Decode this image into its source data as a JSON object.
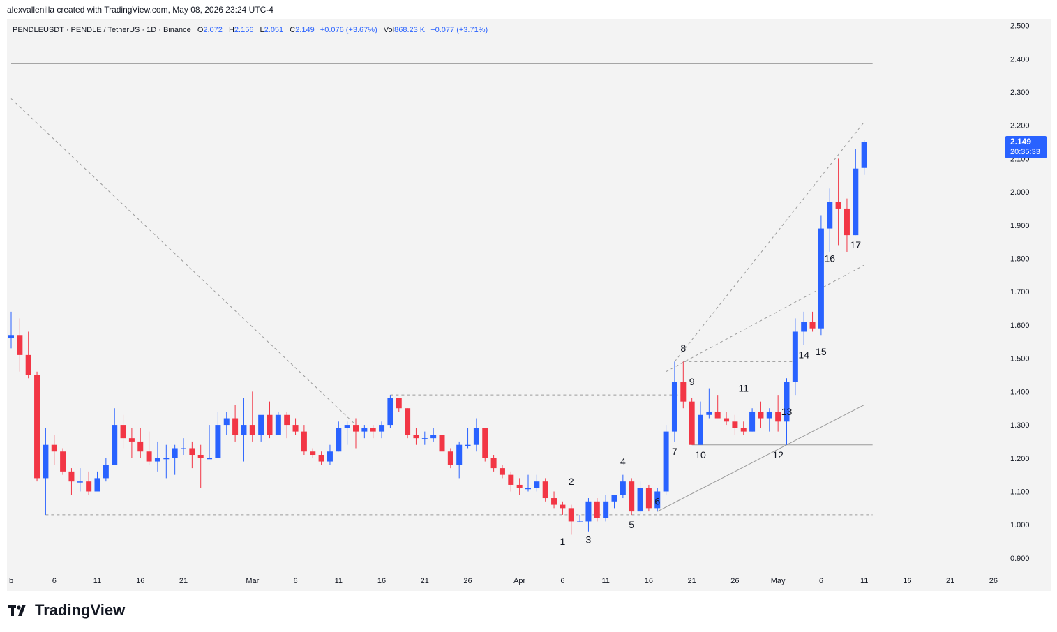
{
  "header": {
    "attribution": "alexvallenilla created with TradingView.com, May 08, 2026 23:24 UTC-4"
  },
  "legend": {
    "symbol": "PENDLEUSDT · PENDLE / TetherUS · 1D · Binance",
    "o_label": "O",
    "o_value": "2.072",
    "h_label": "H",
    "h_value": "2.156",
    "l_label": "L",
    "l_value": "2.051",
    "c_label": "C",
    "c_value": "2.149",
    "change": "+0.076 (+3.67%)",
    "vol_label": "Vol",
    "vol_value": "868.23 K",
    "vol_change": "+0.077 (+3.71%)"
  },
  "price_tag": {
    "price": "2.149",
    "countdown": "20:35:33",
    "value": 2.149
  },
  "brand": {
    "name": "TradingView",
    "logo_icon": "tradingview-logo-icon"
  },
  "colors": {
    "up": "#2962ff",
    "down": "#f23645",
    "plot_bg": "#f3f3f3",
    "guide": "#9a9a9a",
    "tag_bg": "#2962ff"
  },
  "chart_data": {
    "type": "candlestick",
    "y_axis": {
      "range": [
        0.86,
        2.52
      ],
      "ticks": [
        0.9,
        1.0,
        1.1,
        1.2,
        1.3,
        1.4,
        1.5,
        1.6,
        1.7,
        1.8,
        1.9,
        2.0,
        2.1,
        2.2,
        2.3,
        2.4,
        2.5
      ],
      "tick_labels": [
        "0.900",
        "1.000",
        "1.100",
        "1.200",
        "1.300",
        "1.400",
        "1.500",
        "1.600",
        "1.700",
        "1.800",
        "1.900",
        "2.000",
        "2.100",
        "2.200",
        "2.300",
        "2.400",
        "2.500"
      ]
    },
    "x_axis": {
      "range": [
        "2026-02-01",
        "2026-05-28"
      ],
      "ticks": [
        {
          "date": "2026-02-01",
          "label": "b"
        },
        {
          "date": "2026-02-06",
          "label": "6"
        },
        {
          "date": "2026-02-11",
          "label": "11"
        },
        {
          "date": "2026-02-16",
          "label": "16"
        },
        {
          "date": "2026-02-21",
          "label": "21"
        },
        {
          "date": "2026-03-01",
          "label": "Mar"
        },
        {
          "date": "2026-03-06",
          "label": "6"
        },
        {
          "date": "2026-03-11",
          "label": "11"
        },
        {
          "date": "2026-03-16",
          "label": "16"
        },
        {
          "date": "2026-03-21",
          "label": "21"
        },
        {
          "date": "2026-03-26",
          "label": "26"
        },
        {
          "date": "2026-04-01",
          "label": "Apr"
        },
        {
          "date": "2026-04-06",
          "label": "6"
        },
        {
          "date": "2026-04-11",
          "label": "11"
        },
        {
          "date": "2026-04-16",
          "label": "16"
        },
        {
          "date": "2026-04-21",
          "label": "21"
        },
        {
          "date": "2026-04-26",
          "label": "26"
        },
        {
          "date": "2026-05-01",
          "label": "May"
        },
        {
          "date": "2026-05-06",
          "label": "6"
        },
        {
          "date": "2026-05-11",
          "label": "11"
        },
        {
          "date": "2026-05-16",
          "label": "16"
        },
        {
          "date": "2026-05-21",
          "label": "21"
        },
        {
          "date": "2026-05-26",
          "label": "26"
        }
      ]
    },
    "candles": [
      {
        "date": "2026-02-01",
        "o": 1.56,
        "h": 1.64,
        "l": 1.53,
        "c": 1.57
      },
      {
        "date": "2026-02-02",
        "o": 1.57,
        "h": 1.62,
        "l": 1.46,
        "c": 1.51
      },
      {
        "date": "2026-02-03",
        "o": 1.51,
        "h": 1.58,
        "l": 1.44,
        "c": 1.45
      },
      {
        "date": "2026-02-04",
        "o": 1.45,
        "h": 1.46,
        "l": 1.13,
        "c": 1.14
      },
      {
        "date": "2026-02-05",
        "o": 1.14,
        "h": 1.29,
        "l": 1.03,
        "c": 1.24
      },
      {
        "date": "2026-02-06",
        "o": 1.24,
        "h": 1.27,
        "l": 1.18,
        "c": 1.22
      },
      {
        "date": "2026-02-07",
        "o": 1.22,
        "h": 1.23,
        "l": 1.15,
        "c": 1.16
      },
      {
        "date": "2026-02-08",
        "o": 1.16,
        "h": 1.17,
        "l": 1.09,
        "c": 1.13
      },
      {
        "date": "2026-02-09",
        "o": 1.13,
        "h": 1.17,
        "l": 1.1,
        "c": 1.13
      },
      {
        "date": "2026-02-10",
        "o": 1.13,
        "h": 1.16,
        "l": 1.09,
        "c": 1.1
      },
      {
        "date": "2026-02-11",
        "o": 1.1,
        "h": 1.16,
        "l": 1.1,
        "c": 1.14
      },
      {
        "date": "2026-02-12",
        "o": 1.14,
        "h": 1.2,
        "l": 1.13,
        "c": 1.18
      },
      {
        "date": "2026-02-13",
        "o": 1.18,
        "h": 1.35,
        "l": 1.18,
        "c": 1.3
      },
      {
        "date": "2026-02-14",
        "o": 1.3,
        "h": 1.33,
        "l": 1.23,
        "c": 1.26
      },
      {
        "date": "2026-02-15",
        "o": 1.26,
        "h": 1.29,
        "l": 1.2,
        "c": 1.25
      },
      {
        "date": "2026-02-16",
        "o": 1.25,
        "h": 1.29,
        "l": 1.2,
        "c": 1.22
      },
      {
        "date": "2026-02-17",
        "o": 1.22,
        "h": 1.28,
        "l": 1.18,
        "c": 1.19
      },
      {
        "date": "2026-02-18",
        "o": 1.19,
        "h": 1.25,
        "l": 1.16,
        "c": 1.2
      },
      {
        "date": "2026-02-19",
        "o": 1.2,
        "h": 1.24,
        "l": 1.14,
        "c": 1.2
      },
      {
        "date": "2026-02-20",
        "o": 1.2,
        "h": 1.24,
        "l": 1.15,
        "c": 1.23
      },
      {
        "date": "2026-02-21",
        "o": 1.23,
        "h": 1.26,
        "l": 1.21,
        "c": 1.23
      },
      {
        "date": "2026-02-22",
        "o": 1.23,
        "h": 1.25,
        "l": 1.17,
        "c": 1.21
      },
      {
        "date": "2026-02-23",
        "o": 1.21,
        "h": 1.24,
        "l": 1.11,
        "c": 1.2
      },
      {
        "date": "2026-02-24",
        "o": 1.2,
        "h": 1.3,
        "l": 1.2,
        "c": 1.2
      },
      {
        "date": "2026-02-25",
        "o": 1.2,
        "h": 1.34,
        "l": 1.2,
        "c": 1.3
      },
      {
        "date": "2026-02-26",
        "o": 1.3,
        "h": 1.34,
        "l": 1.27,
        "c": 1.32
      },
      {
        "date": "2026-02-27",
        "o": 1.32,
        "h": 1.36,
        "l": 1.25,
        "c": 1.27
      },
      {
        "date": "2026-02-28",
        "o": 1.27,
        "h": 1.38,
        "l": 1.19,
        "c": 1.3
      },
      {
        "date": "2026-03-01",
        "o": 1.3,
        "h": 1.4,
        "l": 1.25,
        "c": 1.27
      },
      {
        "date": "2026-03-02",
        "o": 1.27,
        "h": 1.32,
        "l": 1.25,
        "c": 1.33
      },
      {
        "date": "2026-03-03",
        "o": 1.33,
        "h": 1.37,
        "l": 1.26,
        "c": 1.27
      },
      {
        "date": "2026-03-04",
        "o": 1.27,
        "h": 1.34,
        "l": 1.27,
        "c": 1.33
      },
      {
        "date": "2026-03-05",
        "o": 1.33,
        "h": 1.34,
        "l": 1.26,
        "c": 1.3
      },
      {
        "date": "2026-03-06",
        "o": 1.3,
        "h": 1.32,
        "l": 1.27,
        "c": 1.28
      },
      {
        "date": "2026-03-07",
        "o": 1.28,
        "h": 1.3,
        "l": 1.21,
        "c": 1.22
      },
      {
        "date": "2026-03-08",
        "o": 1.22,
        "h": 1.23,
        "l": 1.2,
        "c": 1.21
      },
      {
        "date": "2026-03-09",
        "o": 1.21,
        "h": 1.22,
        "l": 1.18,
        "c": 1.19
      },
      {
        "date": "2026-03-10",
        "o": 1.19,
        "h": 1.24,
        "l": 1.18,
        "c": 1.22
      },
      {
        "date": "2026-03-11",
        "o": 1.22,
        "h": 1.31,
        "l": 1.22,
        "c": 1.29
      },
      {
        "date": "2026-03-12",
        "o": 1.29,
        "h": 1.31,
        "l": 1.24,
        "c": 1.3
      },
      {
        "date": "2026-03-13",
        "o": 1.3,
        "h": 1.32,
        "l": 1.23,
        "c": 1.28
      },
      {
        "date": "2026-03-14",
        "o": 1.28,
        "h": 1.3,
        "l": 1.26,
        "c": 1.29
      },
      {
        "date": "2026-03-15",
        "o": 1.29,
        "h": 1.3,
        "l": 1.26,
        "c": 1.28
      },
      {
        "date": "2026-03-16",
        "o": 1.28,
        "h": 1.31,
        "l": 1.26,
        "c": 1.3
      },
      {
        "date": "2026-03-17",
        "o": 1.3,
        "h": 1.39,
        "l": 1.29,
        "c": 1.38
      },
      {
        "date": "2026-03-18",
        "o": 1.38,
        "h": 1.38,
        "l": 1.34,
        "c": 1.35
      },
      {
        "date": "2026-03-19",
        "o": 1.35,
        "h": 1.35,
        "l": 1.26,
        "c": 1.27
      },
      {
        "date": "2026-03-20",
        "o": 1.27,
        "h": 1.29,
        "l": 1.24,
        "c": 1.26
      },
      {
        "date": "2026-03-21",
        "o": 1.26,
        "h": 1.28,
        "l": 1.24,
        "c": 1.26
      },
      {
        "date": "2026-03-22",
        "o": 1.26,
        "h": 1.29,
        "l": 1.25,
        "c": 1.27
      },
      {
        "date": "2026-03-23",
        "o": 1.27,
        "h": 1.28,
        "l": 1.21,
        "c": 1.22
      },
      {
        "date": "2026-03-24",
        "o": 1.22,
        "h": 1.23,
        "l": 1.17,
        "c": 1.18
      },
      {
        "date": "2026-03-25",
        "o": 1.18,
        "h": 1.25,
        "l": 1.14,
        "c": 1.24
      },
      {
        "date": "2026-03-26",
        "o": 1.24,
        "h": 1.29,
        "l": 1.23,
        "c": 1.24
      },
      {
        "date": "2026-03-27",
        "o": 1.24,
        "h": 1.32,
        "l": 1.22,
        "c": 1.29
      },
      {
        "date": "2026-03-28",
        "o": 1.29,
        "h": 1.29,
        "l": 1.19,
        "c": 1.2
      },
      {
        "date": "2026-03-29",
        "o": 1.2,
        "h": 1.21,
        "l": 1.16,
        "c": 1.17
      },
      {
        "date": "2026-03-30",
        "o": 1.17,
        "h": 1.18,
        "l": 1.14,
        "c": 1.15
      },
      {
        "date": "2026-03-31",
        "o": 1.15,
        "h": 1.16,
        "l": 1.1,
        "c": 1.12
      },
      {
        "date": "2026-04-01",
        "o": 1.12,
        "h": 1.14,
        "l": 1.09,
        "c": 1.11
      },
      {
        "date": "2026-04-02",
        "o": 1.11,
        "h": 1.15,
        "l": 1.1,
        "c": 1.11
      },
      {
        "date": "2026-04-03",
        "o": 1.11,
        "h": 1.15,
        "l": 1.1,
        "c": 1.13
      },
      {
        "date": "2026-04-04",
        "o": 1.13,
        "h": 1.14,
        "l": 1.07,
        "c": 1.08
      },
      {
        "date": "2026-04-05",
        "o": 1.08,
        "h": 1.1,
        "l": 1.05,
        "c": 1.06
      },
      {
        "date": "2026-04-06",
        "o": 1.06,
        "h": 1.07,
        "l": 1.03,
        "c": 1.05
      },
      {
        "date": "2026-04-07",
        "o": 1.05,
        "h": 1.06,
        "l": 0.97,
        "c": 1.01
      },
      {
        "date": "2026-04-08",
        "o": 1.01,
        "h": 1.03,
        "l": 1.01,
        "c": 1.01
      },
      {
        "date": "2026-04-09",
        "o": 1.01,
        "h": 1.08,
        "l": 0.98,
        "c": 1.07
      },
      {
        "date": "2026-04-10",
        "o": 1.07,
        "h": 1.08,
        "l": 1.01,
        "c": 1.02
      },
      {
        "date": "2026-04-11",
        "o": 1.02,
        "h": 1.09,
        "l": 1.01,
        "c": 1.07
      },
      {
        "date": "2026-04-12",
        "o": 1.07,
        "h": 1.09,
        "l": 1.05,
        "c": 1.09
      },
      {
        "date": "2026-04-13",
        "o": 1.09,
        "h": 1.15,
        "l": 1.08,
        "c": 1.13
      },
      {
        "date": "2026-04-14",
        "o": 1.13,
        "h": 1.14,
        "l": 1.03,
        "c": 1.04
      },
      {
        "date": "2026-04-15",
        "o": 1.04,
        "h": 1.13,
        "l": 1.03,
        "c": 1.11
      },
      {
        "date": "2026-04-16",
        "o": 1.11,
        "h": 1.12,
        "l": 1.04,
        "c": 1.05
      },
      {
        "date": "2026-04-17",
        "o": 1.05,
        "h": 1.11,
        "l": 1.04,
        "c": 1.1
      },
      {
        "date": "2026-04-18",
        "o": 1.1,
        "h": 1.3,
        "l": 1.09,
        "c": 1.28
      },
      {
        "date": "2026-04-19",
        "o": 1.28,
        "h": 1.49,
        "l": 1.25,
        "c": 1.43
      },
      {
        "date": "2026-04-20",
        "o": 1.43,
        "h": 1.49,
        "l": 1.35,
        "c": 1.37
      },
      {
        "date": "2026-04-21",
        "o": 1.37,
        "h": 1.38,
        "l": 1.24,
        "c": 1.24
      },
      {
        "date": "2026-04-22",
        "o": 1.24,
        "h": 1.37,
        "l": 1.24,
        "c": 1.33
      },
      {
        "date": "2026-04-23",
        "o": 1.33,
        "h": 1.41,
        "l": 1.32,
        "c": 1.34
      },
      {
        "date": "2026-04-24",
        "o": 1.34,
        "h": 1.39,
        "l": 1.32,
        "c": 1.32
      },
      {
        "date": "2026-04-25",
        "o": 1.32,
        "h": 1.34,
        "l": 1.3,
        "c": 1.31
      },
      {
        "date": "2026-04-26",
        "o": 1.31,
        "h": 1.33,
        "l": 1.27,
        "c": 1.29
      },
      {
        "date": "2026-04-27",
        "o": 1.29,
        "h": 1.31,
        "l": 1.27,
        "c": 1.28
      },
      {
        "date": "2026-04-28",
        "o": 1.28,
        "h": 1.35,
        "l": 1.28,
        "c": 1.34
      },
      {
        "date": "2026-04-29",
        "o": 1.34,
        "h": 1.37,
        "l": 1.29,
        "c": 1.32
      },
      {
        "date": "2026-04-30",
        "o": 1.32,
        "h": 1.35,
        "l": 1.28,
        "c": 1.34
      },
      {
        "date": "2026-05-01",
        "o": 1.34,
        "h": 1.39,
        "l": 1.28,
        "c": 1.31
      },
      {
        "date": "2026-05-02",
        "o": 1.31,
        "h": 1.44,
        "l": 1.24,
        "c": 1.43
      },
      {
        "date": "2026-05-03",
        "o": 1.43,
        "h": 1.62,
        "l": 1.39,
        "c": 1.58
      },
      {
        "date": "2026-05-04",
        "o": 1.58,
        "h": 1.64,
        "l": 1.54,
        "c": 1.61
      },
      {
        "date": "2026-05-05",
        "o": 1.61,
        "h": 1.64,
        "l": 1.58,
        "c": 1.59
      },
      {
        "date": "2026-05-06",
        "o": 1.59,
        "h": 1.93,
        "l": 1.57,
        "c": 1.89
      },
      {
        "date": "2026-05-07",
        "o": 1.89,
        "h": 2.01,
        "l": 1.82,
        "c": 1.97
      },
      {
        "date": "2026-05-08",
        "o": 1.97,
        "h": 2.1,
        "l": 1.84,
        "c": 1.95
      },
      {
        "date": "2026-05-09",
        "o": 1.95,
        "h": 1.98,
        "l": 1.82,
        "c": 1.87
      },
      {
        "date": "2026-05-10",
        "o": 1.87,
        "h": 2.13,
        "l": 1.87,
        "c": 2.07
      },
      {
        "date": "2026-05-11",
        "o": 2.072,
        "h": 2.156,
        "l": 2.051,
        "c": 2.149
      }
    ],
    "wave_labels": [
      {
        "text": "1",
        "date": "2026-04-06",
        "price": 0.94
      },
      {
        "text": "2",
        "date": "2026-04-07",
        "price": 1.12
      },
      {
        "text": "3",
        "date": "2026-04-09",
        "price": 0.945
      },
      {
        "text": "4",
        "date": "2026-04-13",
        "price": 1.18
      },
      {
        "text": "5",
        "date": "2026-04-14",
        "price": 0.99
      },
      {
        "text": "6",
        "date": "2026-04-17",
        "price": 1.06
      },
      {
        "text": "7",
        "date": "2026-04-19",
        "price": 1.21
      },
      {
        "text": "8",
        "date": "2026-04-20",
        "price": 1.52
      },
      {
        "text": "9",
        "date": "2026-04-21",
        "price": 1.42
      },
      {
        "text": "10",
        "date": "2026-04-22",
        "price": 1.2
      },
      {
        "text": "11",
        "date": "2026-04-27",
        "price": 1.4
      },
      {
        "text": "12",
        "date": "2026-05-01",
        "price": 1.2
      },
      {
        "text": "13",
        "date": "2026-05-02",
        "price": 1.33
      },
      {
        "text": "14",
        "date": "2026-05-04",
        "price": 1.5
      },
      {
        "text": "15",
        "date": "2026-05-06",
        "price": 1.51
      },
      {
        "text": "16",
        "date": "2026-05-07",
        "price": 1.79
      },
      {
        "text": "17",
        "date": "2026-05-10",
        "price": 1.83
      }
    ],
    "drawings": [
      {
        "kind": "horizontal-line",
        "style": "solid",
        "price": 2.385,
        "from": "2026-02-01",
        "to": "2026-05-11"
      },
      {
        "kind": "horizontal-line",
        "style": "dashed",
        "price": 1.03,
        "from": "2026-02-05",
        "to": "2026-05-11"
      },
      {
        "kind": "horizontal-line",
        "style": "dashed",
        "price": 1.39,
        "from": "2026-03-17",
        "to": "2026-04-19"
      },
      {
        "kind": "horizontal-line",
        "style": "dashed",
        "price": 1.49,
        "from": "2026-04-20",
        "to": "2026-05-02"
      },
      {
        "kind": "horizontal-line",
        "style": "solid",
        "price": 1.24,
        "from": "2026-04-21",
        "to": "2026-05-11"
      },
      {
        "kind": "trend-line",
        "style": "dashed",
        "from": [
          "2026-02-01",
          2.28
        ],
        "to": [
          "2026-03-13",
          1.3
        ]
      },
      {
        "kind": "trend-line",
        "style": "dashed",
        "from": [
          "2026-04-19",
          1.49
        ],
        "to": [
          "2026-05-11",
          2.21
        ]
      },
      {
        "kind": "trend-line",
        "style": "dashed",
        "from": [
          "2026-04-18",
          1.46
        ],
        "to": [
          "2026-05-11",
          1.78
        ]
      },
      {
        "kind": "trend-line",
        "style": "solid",
        "from": [
          "2026-04-17",
          1.04
        ],
        "to": [
          "2026-05-11",
          1.36
        ]
      }
    ],
    "current_price": 2.149,
    "legend_placement": "top-left",
    "grid": false
  }
}
